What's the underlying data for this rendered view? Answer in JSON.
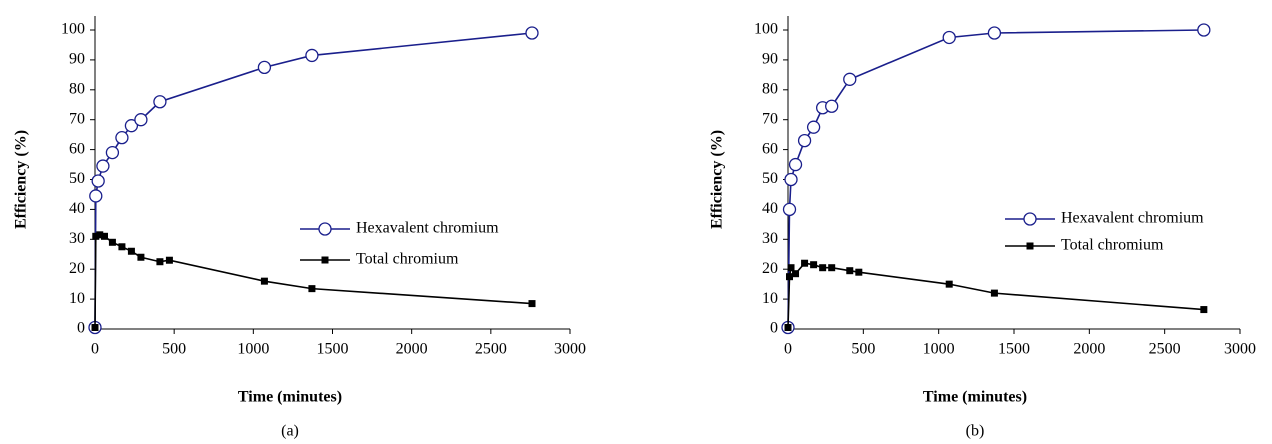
{
  "chart_data": [
    {
      "type": "line",
      "xlabel": "Time (minutes)",
      "ylabel": "Efficiency (%)",
      "caption": "(a)",
      "xlim": [
        0,
        3000
      ],
      "xticks": [
        0,
        500,
        1000,
        1500,
        2000,
        2500,
        3000
      ],
      "ylim": [
        0,
        100
      ],
      "yticks": [
        0,
        10,
        20,
        30,
        40,
        50,
        60,
        70,
        80,
        90,
        100
      ],
      "series": [
        {
          "name": "Hexavalent chromium",
          "color": "#1a1f8c",
          "marker": "circle",
          "x": [
            0,
            5,
            20,
            50,
            110,
            170,
            230,
            290,
            410,
            1070,
            1370,
            2760
          ],
          "values": [
            0.5,
            44.5,
            49.5,
            54.5,
            59,
            64,
            68,
            70,
            76,
            87.5,
            91.5,
            99
          ]
        },
        {
          "name": "Total chromium",
          "color": "#000000",
          "marker": "square",
          "x": [
            0,
            5,
            30,
            60,
            110,
            170,
            230,
            290,
            410,
            470,
            1070,
            1370,
            2760
          ],
          "values": [
            0.5,
            31,
            31.5,
            31,
            29,
            27.5,
            26,
            24,
            22.5,
            23,
            16,
            13.5,
            8.5
          ]
        }
      ]
    },
    {
      "type": "line",
      "xlabel": "Time (minutes)",
      "ylabel": "Efficiency (%)",
      "caption": "(b)",
      "xlim": [
        0,
        3000
      ],
      "xticks": [
        0,
        500,
        1000,
        1500,
        2000,
        2500,
        3000
      ],
      "ylim": [
        0,
        100
      ],
      "yticks": [
        0,
        10,
        20,
        30,
        40,
        50,
        60,
        70,
        80,
        90,
        100
      ],
      "series": [
        {
          "name": "Hexavalent chromium",
          "color": "#1a1f8c",
          "marker": "circle",
          "x": [
            0,
            10,
            20,
            50,
            110,
            170,
            230,
            290,
            410,
            1070,
            1370,
            2760
          ],
          "values": [
            0.5,
            40,
            50,
            55,
            63,
            67.5,
            74,
            74.5,
            83.5,
            97.5,
            99,
            100
          ]
        },
        {
          "name": "Total chromium",
          "color": "#000000",
          "marker": "square",
          "x": [
            0,
            10,
            20,
            50,
            110,
            170,
            230,
            290,
            410,
            470,
            1070,
            1370,
            2760
          ],
          "values": [
            0.5,
            17.5,
            20.5,
            18.5,
            22,
            21.5,
            20.5,
            20.5,
            19.5,
            19,
            15,
            12,
            6.5
          ]
        }
      ]
    }
  ]
}
